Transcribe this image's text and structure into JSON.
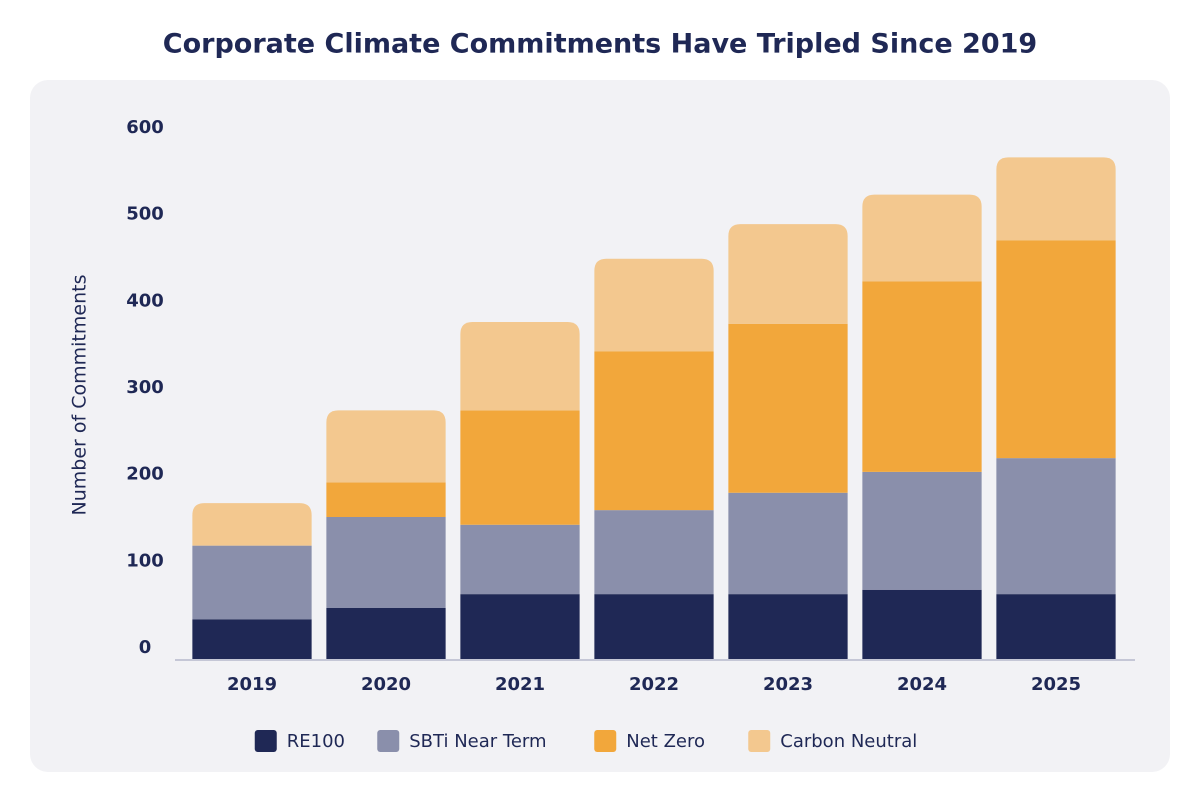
{
  "chart_data": {
    "type": "stacked-bar",
    "title": "Corporate Climate Commitments Have Tripled Since 2019",
    "y_label": "Number of Commitments",
    "categories": [
      "2019",
      "2020",
      "2021",
      "2022",
      "2023",
      "2024",
      "2025"
    ],
    "series": [
      {
        "name": "RE100",
        "color": "#1f2855",
        "values": [
          47,
          60,
          76,
          76,
          76,
          81,
          76
        ]
      },
      {
        "name": "SBTi Near Term",
        "color": "#8a8fab",
        "values": [
          85,
          105,
          80,
          97,
          117,
          136,
          157
        ]
      },
      {
        "name": "Net Zero",
        "color": "#f2a73b",
        "values": [
          0,
          40,
          132,
          183,
          195,
          220,
          251
        ]
      },
      {
        "name": "Carbon Neutral",
        "color": "#f3c88f",
        "values": [
          49,
          83,
          102,
          107,
          115,
          100,
          96
        ]
      }
    ],
    "ylim": [
      0,
      600
    ],
    "yticks": [
      0,
      100,
      200,
      300,
      400,
      500,
      600
    ],
    "grid": false,
    "legend": "bottom"
  }
}
